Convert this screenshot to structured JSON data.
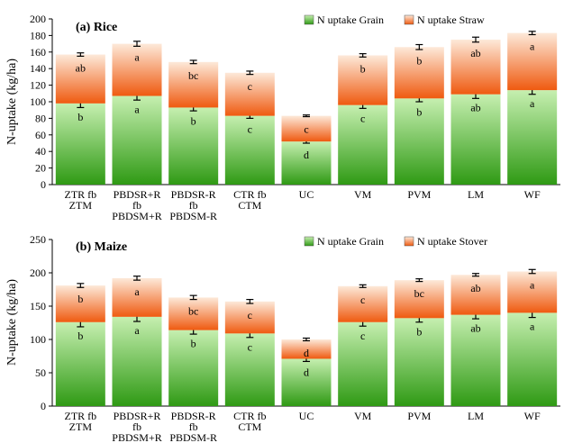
{
  "colors": {
    "grain_top": "#c6efb0",
    "grain_bottom": "#2f9a14",
    "straw_top": "#fde9d9",
    "straw_bottom": "#ef5a10",
    "axis": "#000000",
    "error_bar": "#000000"
  },
  "chart_data": [
    {
      "id": "rice",
      "type": "bar",
      "stacked": true,
      "title": "(a) Rice",
      "ylabel": "N-uptake (kg/ha)",
      "xlabel": "",
      "ylim": [
        0,
        200
      ],
      "yticks": [
        0,
        20,
        40,
        60,
        80,
        100,
        120,
        140,
        160,
        180,
        200
      ],
      "grid": false,
      "legend_position": "top-right",
      "categories": [
        [
          "ZTR fb",
          "ZTM"
        ],
        [
          "PBDSR+R",
          "fb",
          "PBDSM+R"
        ],
        [
          "PBDSR-R",
          "fb",
          "PBDSM-R"
        ],
        [
          "CTR fb",
          "CTM"
        ],
        [
          "UC"
        ],
        [
          "VM"
        ],
        [
          "PVM"
        ],
        [
          "LM"
        ],
        [
          "WF"
        ]
      ],
      "series": [
        {
          "name": "N uptake Grain",
          "values": [
            98,
            107,
            93,
            83,
            52,
            96,
            104,
            109,
            114
          ],
          "errors": [
            5,
            5,
            4,
            3,
            2,
            4,
            4,
            5,
            5
          ],
          "letters": [
            "b",
            "a",
            "b",
            "c",
            "d",
            "c",
            "b",
            "ab",
            "a"
          ]
        },
        {
          "name": "N uptake Straw",
          "values": [
            59,
            63,
            55,
            52,
            31,
            60,
            62,
            66,
            69
          ],
          "errors": [
            2,
            3,
            2,
            2,
            1,
            2,
            3,
            3,
            2
          ],
          "letters": [
            "ab",
            "a",
            "bc",
            "c",
            "c",
            "b",
            "b",
            "ab",
            "a"
          ]
        }
      ]
    },
    {
      "id": "maize",
      "type": "bar",
      "stacked": true,
      "title": "(b) Maize",
      "ylabel": "N-uptake (kg/ha)",
      "xlabel": "",
      "ylim": [
        0,
        250
      ],
      "yticks": [
        0,
        50,
        100,
        150,
        200,
        250
      ],
      "grid": false,
      "legend_position": "top-right",
      "categories": [
        [
          "ZTR fb",
          "ZTM"
        ],
        [
          "PBDSR+R",
          "fb",
          "PBDSM+R"
        ],
        [
          "PBDSR-R",
          "fb",
          "PBDSM-R"
        ],
        [
          "CTR fb",
          "CTM"
        ],
        [
          "UC"
        ],
        [
          "VM"
        ],
        [
          "PVM"
        ],
        [
          "LM"
        ],
        [
          "WF"
        ]
      ],
      "series": [
        {
          "name": "N uptake Grain",
          "values": [
            126,
            134,
            114,
            109,
            71,
            126,
            132,
            137,
            140
          ],
          "errors": [
            7,
            7,
            6,
            6,
            4,
            6,
            6,
            6,
            7
          ],
          "letters": [
            "b",
            "a",
            "b",
            "c",
            "d",
            "c",
            "b",
            "ab",
            "a"
          ]
        },
        {
          "name": "N uptake Stover",
          "values": [
            55,
            58,
            49,
            48,
            29,
            54,
            57,
            60,
            62
          ],
          "errors": [
            3,
            3,
            3,
            3,
            2,
            2,
            2,
            2,
            3
          ],
          "letters": [
            "b",
            "a",
            "bc",
            "c",
            "d",
            "c",
            "bc",
            "ab",
            "a"
          ]
        }
      ]
    }
  ]
}
